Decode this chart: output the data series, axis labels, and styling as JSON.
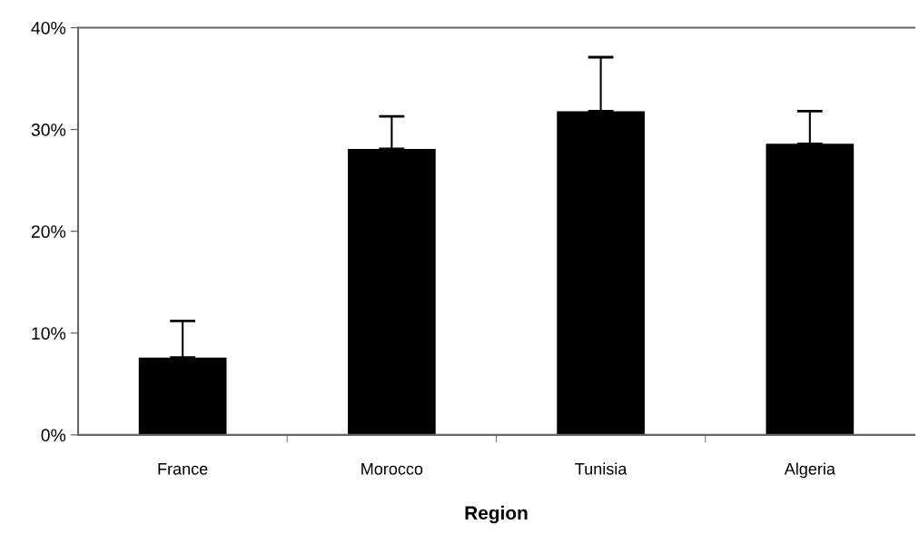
{
  "chart_data": {
    "type": "bar",
    "xlabel": "Region",
    "categories": [
      "France",
      "Morocco",
      "Tunisia",
      "Algeria"
    ],
    "values": [
      7.6,
      28.1,
      31.8,
      28.6
    ],
    "errors": [
      [
        7.6,
        11.2
      ],
      [
        28.1,
        31.3
      ],
      [
        31.8,
        37.1
      ],
      [
        28.6,
        31.8
      ]
    ],
    "color": "#000000",
    "ylim": [
      0,
      40
    ],
    "yticks": [
      {
        "value": 0,
        "label": "0%"
      },
      {
        "value": 10,
        "label": "10%"
      },
      {
        "value": 20,
        "label": "20%"
      },
      {
        "value": 30,
        "label": "30%"
      },
      {
        "value": 40,
        "label": "40%"
      }
    ],
    "grid": false
  }
}
